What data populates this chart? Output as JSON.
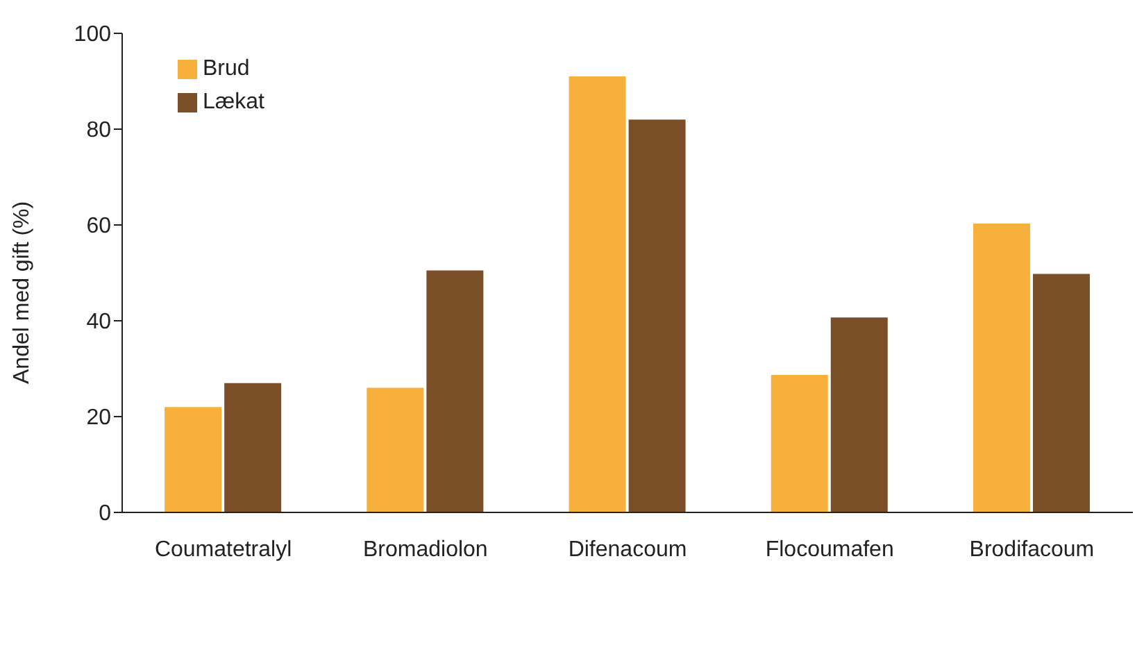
{
  "chart_data": {
    "type": "bar",
    "ylabel": "Andel med gift (%)",
    "categories": [
      "Coumatetralyl",
      "Bromadiolon",
      "Difenacoum",
      "Flocoumafen",
      "Brodifacoum"
    ],
    "series": [
      {
        "name": "Brud",
        "color": "#f8b03c",
        "values": [
          22,
          26,
          91,
          28.7,
          60.3
        ]
      },
      {
        "name": "Lækat",
        "color": "#7a4f27",
        "values": [
          27,
          50.5,
          82,
          40.7,
          49.8
        ]
      }
    ],
    "ylim": [
      0,
      100
    ],
    "yticks": [
      0,
      20,
      40,
      60,
      80,
      100
    ],
    "grid": false,
    "legend": "top left"
  }
}
